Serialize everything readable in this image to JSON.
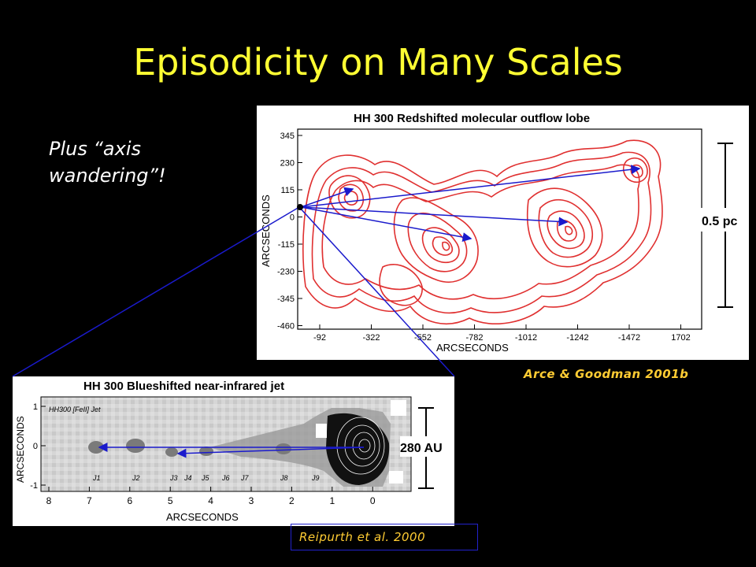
{
  "slide": {
    "title": "Episodicity on Many Scales",
    "side_note_line1": "Plus “axis",
    "side_note_line2": "wandering”!"
  },
  "top_figure": {
    "title": "HH 300 Redshifted molecular outflow lobe",
    "xlabel": "ARCSECONDS",
    "ylabel": "ARCSECONDS",
    "x_ticks": [
      "-92",
      "-322",
      "-552",
      "-782",
      "-1012",
      "-1242",
      "-1472",
      "1702"
    ],
    "y_ticks": [
      "345",
      "230",
      "115",
      "0",
      "-115",
      "-230",
      "-345",
      "-460"
    ],
    "scale_label": "0.5 pc",
    "citation": "Arce & Goodman 2001b"
  },
  "bottom_figure": {
    "title": "HH 300 Blueshifted near-infrared jet",
    "inset_label": "HH300 [FeII] Jet",
    "xlabel": "ARCSECONDS",
    "ylabel": "ARCSECONDS",
    "x_ticks": [
      "8",
      "7",
      "6",
      "5",
      "4",
      "3",
      "2",
      "1",
      "0"
    ],
    "y_ticks": [
      "1",
      "0",
      "-1"
    ],
    "knots": [
      "J1",
      "J2",
      "J3",
      "J4",
      "J5",
      "J6",
      "J7",
      "J8",
      "J9"
    ],
    "scale_label": "280 AU",
    "citation": "Reipurth et al. 2000"
  },
  "colors": {
    "title": "#ffff33",
    "citation": "#ffcc33",
    "arrows": "#1a1acc",
    "contours": "#e03030"
  }
}
